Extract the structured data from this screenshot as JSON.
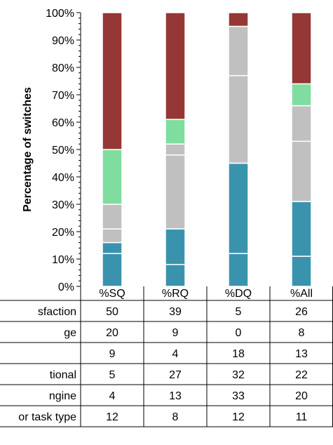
{
  "chart_data": {
    "type": "bar",
    "stacked": true,
    "categories": [
      "%SQ",
      "%RQ",
      "%DQ",
      "%All"
    ],
    "ylabel": "Percentage of switches",
    "ylim": [
      0,
      100
    ],
    "yticks": [
      "0%",
      "10%",
      "20%",
      "30%",
      "40%",
      "50%",
      "60%",
      "70%",
      "80%",
      "90%",
      "100%"
    ],
    "series": [
      {
        "name": "…or task type",
        "values": [
          12,
          8,
          12,
          11
        ],
        "color": "#3a93ad"
      },
      {
        "name": "…ngine",
        "values": [
          4,
          13,
          33,
          20
        ],
        "color": "#3a93ad"
      },
      {
        "name": "…tional",
        "values": [
          5,
          27,
          32,
          22
        ],
        "color": "#c0c0c0"
      },
      {
        "name": "",
        "values": [
          9,
          4,
          18,
          13
        ],
        "color": "#c0c0c0"
      },
      {
        "name": "…ge",
        "values": [
          20,
          9,
          0,
          8
        ],
        "color": "#7fdd9f"
      },
      {
        "name": "…sfaction",
        "values": [
          50,
          39,
          5,
          26
        ],
        "color": "#953735"
      }
    ],
    "table": {
      "headers": [
        "%SQ",
        "%RQ",
        "%DQ",
        "%All"
      ],
      "rows": [
        {
          "label": "sfaction",
          "values": [
            "50",
            "39",
            "5",
            "26"
          ]
        },
        {
          "label": "ge",
          "values": [
            "20",
            "9",
            "0",
            "8"
          ]
        },
        {
          "label": "",
          "values": [
            "9",
            "4",
            "18",
            "13"
          ]
        },
        {
          "label": "tional",
          "values": [
            "5",
            "27",
            "32",
            "22"
          ]
        },
        {
          "label": "ngine",
          "values": [
            "4",
            "13",
            "33",
            "20"
          ]
        },
        {
          "label": "or task type",
          "values": [
            "12",
            "8",
            "12",
            "11"
          ]
        }
      ]
    },
    "grid": false,
    "legend": "table-below"
  }
}
